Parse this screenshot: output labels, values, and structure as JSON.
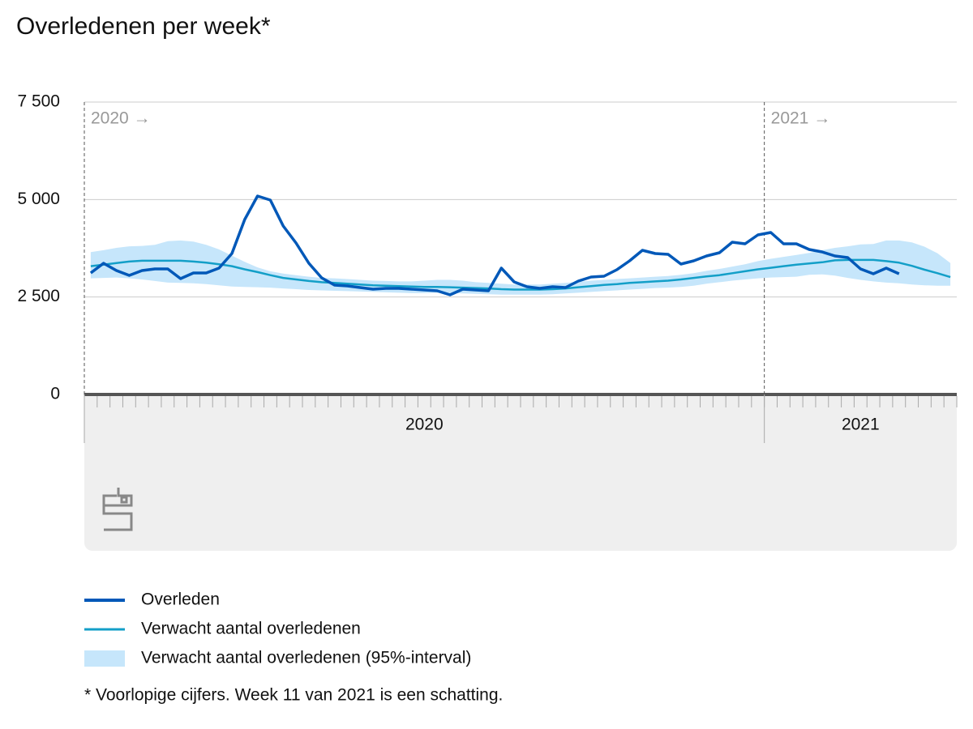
{
  "chart_data": {
    "type": "line",
    "title": "Overledenen per week*",
    "footnote": "* Voorlopige cijfers. Week 11 van 2021 is een schatting.",
    "x": [
      1,
      2,
      3,
      4,
      5,
      6,
      7,
      8,
      9,
      10,
      11,
      12,
      13,
      14,
      15,
      16,
      17,
      18,
      19,
      20,
      21,
      22,
      23,
      24,
      25,
      26,
      27,
      28,
      29,
      30,
      31,
      32,
      33,
      34,
      35,
      36,
      37,
      38,
      39,
      40,
      41,
      42,
      43,
      44,
      45,
      46,
      47,
      48,
      49,
      50,
      51,
      52,
      53,
      54,
      55,
      56,
      57,
      58,
      59,
      60,
      61,
      62,
      63,
      64,
      65,
      66,
      67,
      68
    ],
    "xlim": [
      0.5,
      68.5
    ],
    "xticks": [
      0.5,
      1.5,
      2.5,
      3.5,
      4.5,
      5.5,
      6.5,
      7.5,
      8.5,
      9.5,
      10.5,
      11.5,
      12.5,
      13.5,
      14.5,
      15.5,
      16.5,
      17.5,
      18.5,
      19.5,
      20.5,
      21.5,
      22.5,
      23.5,
      24.5,
      25.5,
      26.5,
      27.5,
      28.5,
      29.5,
      30.5,
      31.5,
      32.5,
      33.5,
      34.5,
      35.5,
      36.5,
      37.5,
      38.5,
      39.5,
      40.5,
      41.5,
      42.5,
      43.5,
      44.5,
      45.5,
      46.5,
      47.5,
      48.5,
      49.5,
      50.5,
      51.5,
      52.5,
      53.5,
      54.5,
      55.5,
      56.5,
      57.5,
      58.5,
      59.5,
      60.5,
      61.5,
      62.5,
      63.5,
      64.5,
      65.5,
      66.5,
      67.5,
      68.5
    ],
    "x_groups": [
      {
        "label": "2020",
        "range": [
          0.5,
          53.5
        ]
      },
      {
        "label": "2021",
        "range": [
          53.5,
          68.5
        ]
      }
    ],
    "year_markers": [
      {
        "label": "2020 →",
        "x": 0.5
      },
      {
        "label": "2021 →",
        "x": 53.5
      }
    ],
    "ylim": [
      0,
      7500
    ],
    "yticks": [
      0,
      {
        "value": 2500,
        "label": "2 500"
      },
      {
        "value": 5000,
        "label": "5 000"
      },
      {
        "value": 7500,
        "label": "7 500"
      }
    ],
    "grid": true,
    "series": [
      {
        "name": "Overleden",
        "color": "#0058b8",
        "values": [
          3117,
          3366,
          3179,
          3054,
          3179,
          3220,
          3220,
          2971,
          3117,
          3117,
          3241,
          3615,
          4488,
          5090,
          4986,
          4322,
          3885,
          3366,
          2992,
          2805,
          2784,
          2743,
          2701,
          2722,
          2722,
          2701,
          2680,
          2660,
          2556,
          2701,
          2680,
          2660,
          3241,
          2888,
          2763,
          2722,
          2763,
          2743,
          2909,
          3013,
          3033,
          3200,
          3428,
          3698,
          3615,
          3594,
          3345,
          3428,
          3553,
          3636,
          3906,
          3864,
          4093,
          4155,
          3864,
          3864,
          3719,
          3657,
          3553,
          3511,
          3220,
          3096,
          3241,
          3096,
          null,
          null,
          null,
          null
        ]
      },
      {
        "name": "Verwacht aantal overledenen",
        "color": "#139fc8",
        "values": [
          3290,
          3330,
          3370,
          3410,
          3430,
          3430,
          3430,
          3430,
          3410,
          3380,
          3340,
          3290,
          3210,
          3140,
          3060,
          2990,
          2950,
          2910,
          2880,
          2860,
          2840,
          2820,
          2800,
          2790,
          2780,
          2770,
          2760,
          2760,
          2750,
          2740,
          2730,
          2720,
          2700,
          2690,
          2690,
          2690,
          2700,
          2720,
          2750,
          2780,
          2810,
          2830,
          2860,
          2880,
          2900,
          2920,
          2950,
          2990,
          3030,
          3060,
          3110,
          3160,
          3210,
          3250,
          3290,
          3330,
          3360,
          3390,
          3440,
          3450,
          3450,
          3450,
          3420,
          3380,
          3300,
          3200,
          3110,
          3010
        ]
      }
    ],
    "band": {
      "name": "Verwacht aantal overledenen (95%-interval)",
      "color": "#c6e6fb",
      "upper": [
        3650,
        3700,
        3760,
        3800,
        3810,
        3840,
        3930,
        3950,
        3920,
        3840,
        3720,
        3560,
        3400,
        3260,
        3160,
        3100,
        3060,
        3020,
        2990,
        2980,
        2960,
        2940,
        2920,
        2910,
        2900,
        2900,
        2920,
        2940,
        2940,
        2920,
        2880,
        2860,
        2840,
        2820,
        2820,
        2820,
        2840,
        2860,
        2890,
        2920,
        2940,
        2960,
        2980,
        3000,
        3020,
        3040,
        3070,
        3110,
        3170,
        3220,
        3280,
        3340,
        3420,
        3480,
        3530,
        3580,
        3630,
        3700,
        3760,
        3800,
        3850,
        3860,
        3950,
        3950,
        3900,
        3790,
        3620,
        3370
      ],
      "lower": [
        2980,
        2990,
        3000,
        2980,
        2950,
        2910,
        2870,
        2860,
        2850,
        2830,
        2800,
        2770,
        2760,
        2750,
        2740,
        2720,
        2700,
        2680,
        2670,
        2660,
        2650,
        2640,
        2630,
        2620,
        2610,
        2600,
        2600,
        2610,
        2600,
        2590,
        2580,
        2570,
        2560,
        2560,
        2560,
        2560,
        2570,
        2590,
        2610,
        2630,
        2650,
        2670,
        2690,
        2710,
        2730,
        2740,
        2760,
        2790,
        2840,
        2880,
        2920,
        2950,
        2980,
        3000,
        3010,
        3020,
        3070,
        3080,
        3050,
        2990,
        2940,
        2900,
        2870,
        2850,
        2820,
        2800,
        2790,
        2790
      ]
    }
  }
}
